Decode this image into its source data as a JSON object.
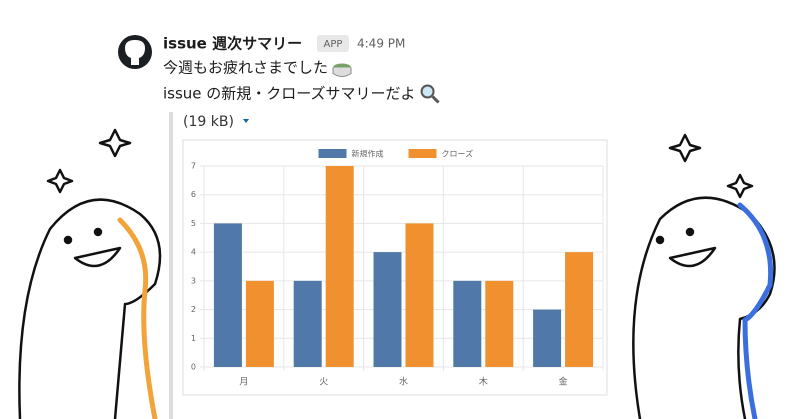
{
  "message": {
    "sender": "issue 週次サマリー",
    "badge": "APP",
    "time": "4:49 PM",
    "lines": [
      "今週もお疲れさまでした",
      "issue の新規・クローズサマリーだよ"
    ],
    "attachment": "(19 kB)"
  },
  "chart_data": {
    "type": "bar",
    "categories": [
      "月",
      "火",
      "水",
      "木",
      "金"
    ],
    "series": [
      {
        "name": "新規作成",
        "color": "#5078a8",
        "values": [
          5,
          3,
          4,
          3,
          2
        ]
      },
      {
        "name": "クローズ",
        "color": "#f0902e",
        "values": [
          3,
          7,
          5,
          3,
          4
        ]
      }
    ],
    "ylim": [
      0,
      7
    ],
    "yticks": [
      0,
      1,
      2,
      3,
      4,
      5,
      6,
      7
    ],
    "grid": true,
    "legend": "top"
  }
}
